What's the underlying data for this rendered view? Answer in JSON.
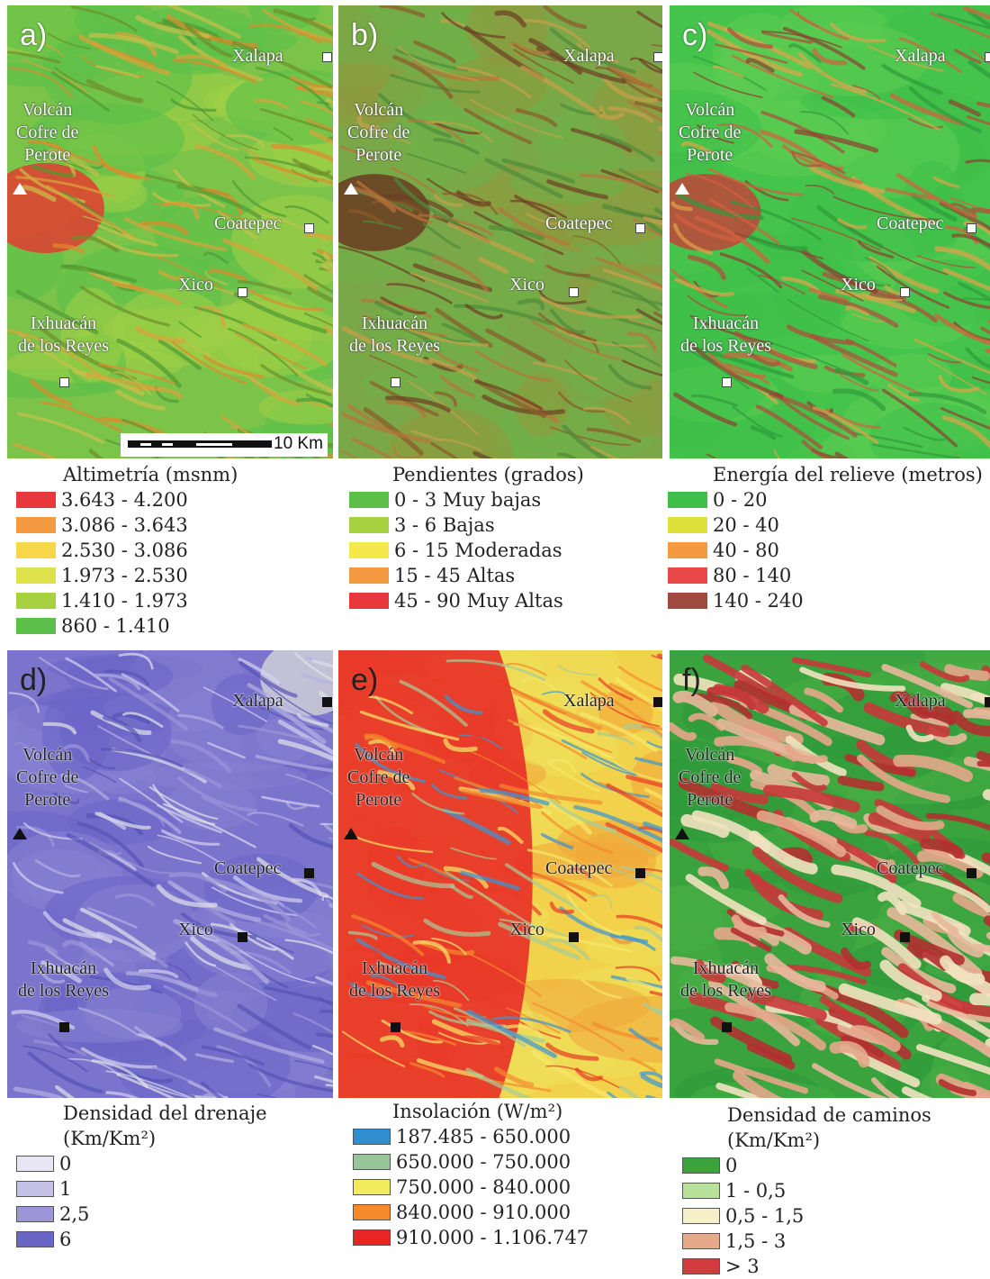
{
  "panels": [
    {
      "letter": "a)",
      "theme": "altimetry"
    },
    {
      "letter": "b)",
      "theme": "slopes"
    },
    {
      "letter": "c)",
      "theme": "relief"
    },
    {
      "letter": "d)",
      "theme": "drainage"
    },
    {
      "letter": "e)",
      "theme": "insolation"
    },
    {
      "letter": "f)",
      "theme": "roads"
    }
  ],
  "places": {
    "xalapa": "Xalapa",
    "volcan_line1": "Volcán",
    "volcan_line2": "Cofre de",
    "volcan_line3": "Perote",
    "coatepec": "Coatepec",
    "xico": "Xico",
    "ixhuacan_line1": "Ixhuacán",
    "ixhuacan_line2": "de los Reyes"
  },
  "scale_bar": {
    "label": "10 Km"
  },
  "legends": {
    "altimetria": {
      "title": "Altimetría (msnm)",
      "items": [
        {
          "label": "3.643 - 4.200",
          "color": "#e8383c"
        },
        {
          "label": "3.086 - 3.643",
          "color": "#f49a40"
        },
        {
          "label": "2.530 - 3.086",
          "color": "#f8d84a"
        },
        {
          "label": "1.973 - 2.530",
          "color": "#dde24a"
        },
        {
          "label": "1.410 - 1.973",
          "color": "#a8d142"
        },
        {
          "label": "860 - 1.410",
          "color": "#5cbf4a"
        }
      ]
    },
    "pendientes": {
      "title": "Pendientes (grados)",
      "items": [
        {
          "label": "0 - 3 Muy bajas",
          "color": "#5cbf4a"
        },
        {
          "label": "3 - 6 Bajas",
          "color": "#a8d142"
        },
        {
          "label": "6 - 15 Moderadas",
          "color": "#f4e84a"
        },
        {
          "label": "15 - 45 Altas",
          "color": "#f49a40"
        },
        {
          "label": "45 - 90 Muy Altas",
          "color": "#e8383c"
        }
      ]
    },
    "energia": {
      "title": "Energía del relieve (metros)",
      "items": [
        {
          "label": "0 - 20",
          "color": "#3fbf4a"
        },
        {
          "label": "20 - 40",
          "color": "#dfe03a"
        },
        {
          "label": "40 - 80",
          "color": "#f49a40"
        },
        {
          "label": "80 - 140",
          "color": "#e84848"
        },
        {
          "label": "140 - 240",
          "color": "#9e4a3e"
        }
      ]
    },
    "drenaje": {
      "title_line1": "Densidad del drenaje",
      "title_line2": "(Km/Km²)",
      "items": [
        {
          "label": "0",
          "color": "#e8e6f4"
        },
        {
          "label": "1",
          "color": "#c4c0e6"
        },
        {
          "label": "2,5",
          "color": "#9c96d8"
        },
        {
          "label": "6",
          "color": "#6a66c6"
        }
      ]
    },
    "insolacion": {
      "title": "Insolación (W/m²)",
      "items": [
        {
          "label": "187.485 - 650.000",
          "color": "#2f8fd0"
        },
        {
          "label": "650.000 - 750.000",
          "color": "#98c69a"
        },
        {
          "label": "750.000 - 840.000",
          "color": "#f2ec5a"
        },
        {
          "label": "840.000 - 910.000",
          "color": "#f48a2c"
        },
        {
          "label": "910.000 - 1.106.747",
          "color": "#e82424"
        }
      ]
    },
    "caminos": {
      "title_line1": "Densidad de caminos",
      "title_line2": "(Km/Km²)",
      "items": [
        {
          "label": "0",
          "color": "#3aa33e"
        },
        {
          "label": "1 - 0,5",
          "color": "#b8e29a"
        },
        {
          "label": "0,5 - 1,5",
          "color": "#f6f0c8"
        },
        {
          "label": "1,5 - 3",
          "color": "#e8a88a"
        },
        {
          "label": "> 3",
          "color": "#d23c3c"
        }
      ]
    }
  }
}
